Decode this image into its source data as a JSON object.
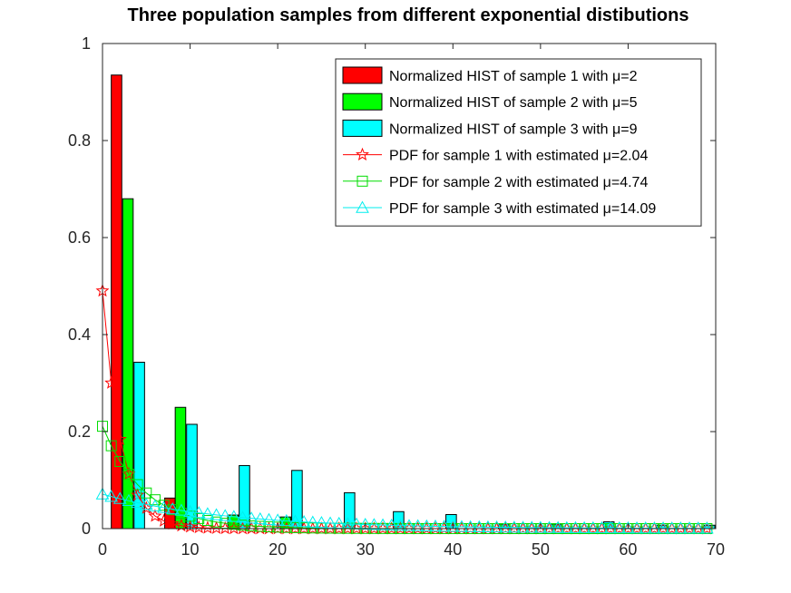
{
  "chart_data": {
    "type": "bar",
    "title": "Three population samples from different exponential distibutions",
    "xlabel": "",
    "ylabel": "",
    "xlim": [
      0,
      70
    ],
    "ylim": [
      0,
      1
    ],
    "x_ticks": [
      "0",
      "10",
      "20",
      "30",
      "40",
      "50",
      "60",
      "70"
    ],
    "y_ticks": [
      "0",
      "0.2",
      "0.4",
      "0.6",
      "0.8",
      "1"
    ],
    "grid": false,
    "legend_position": "top-right",
    "histograms": [
      {
        "name": "Normalized HIST of sample 1 with μ=2",
        "color": "#ff0000",
        "bin_width": 1.2,
        "x": [
          1.6,
          7.7
        ],
        "values": [
          0.935,
          0.063
        ]
      },
      {
        "name": "Normalized HIST of sample 2 with μ=5",
        "color": "#00ff00",
        "bin_width": 1.2,
        "x": [
          2.9,
          8.9,
          14.9,
          20.9
        ],
        "values": [
          0.68,
          0.25,
          0.028,
          0.024
        ]
      },
      {
        "name": "Normalized HIST of sample 3 with μ=9",
        "color": "#00ffff",
        "bin_width": 1.2,
        "x": [
          4.2,
          10.2,
          16.2,
          22.2,
          28.2,
          33.8,
          39.8,
          45.8,
          51.8,
          57.8,
          63.8,
          69.3
        ],
        "values": [
          0.343,
          0.215,
          0.13,
          0.12,
          0.074,
          0.035,
          0.029,
          0.008,
          0.008,
          0.014,
          0.007,
          0.007
        ]
      }
    ],
    "pdf_series": [
      {
        "name": "PDF for sample 1 with estimated μ=2.04",
        "color": "#ff0000",
        "marker": "star",
        "mu": 2.04
      },
      {
        "name": "PDF for sample 2 with estimated μ=4.74",
        "color": "#00dd00",
        "marker": "square",
        "mu": 4.74
      },
      {
        "name": "PDF for sample 3 with estimated μ=14.09",
        "color": "#00eeee",
        "marker": "triangle",
        "mu": 14.09
      }
    ]
  }
}
